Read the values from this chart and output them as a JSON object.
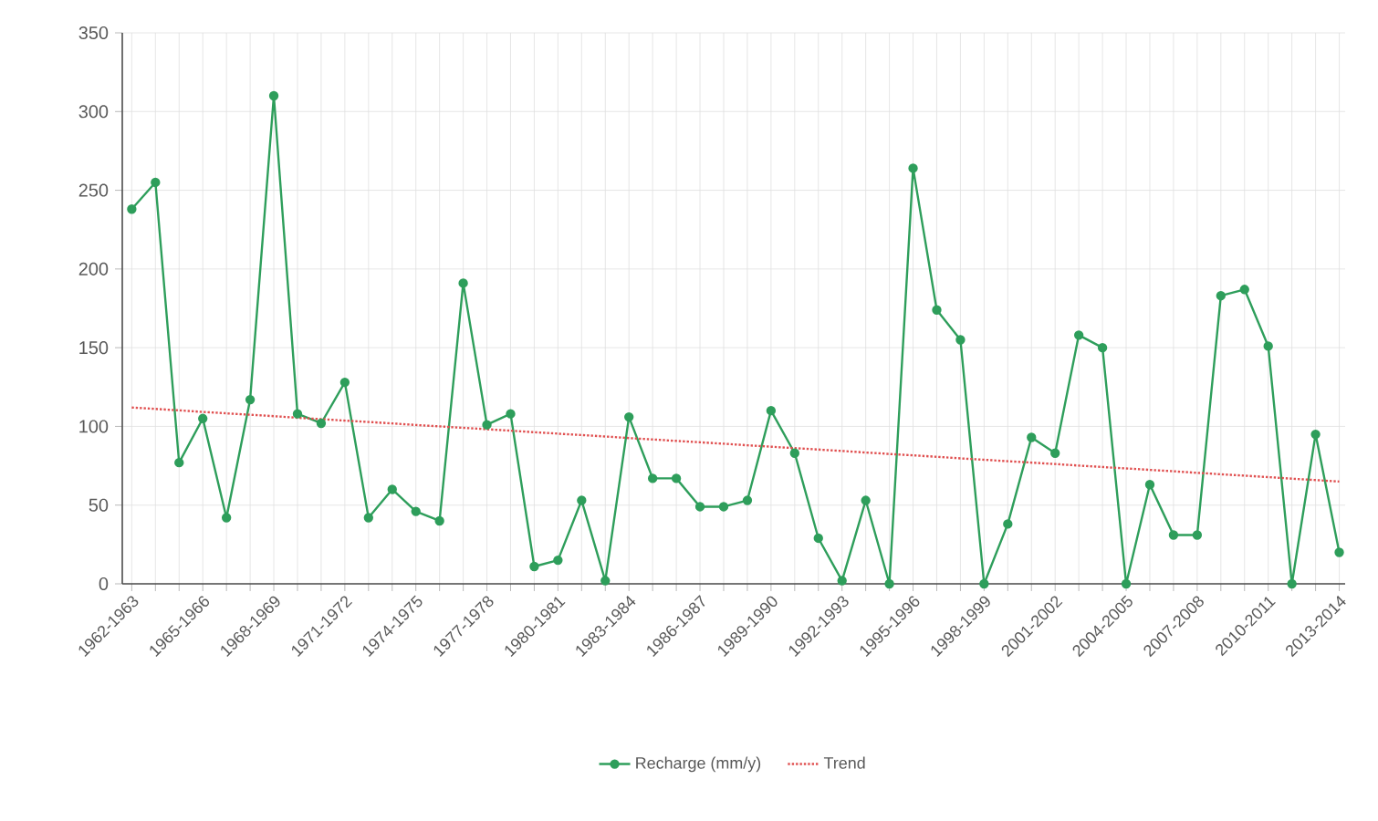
{
  "chart_data": {
    "type": "line",
    "categories": [
      "1962-1963",
      null,
      null,
      "1965-1966",
      null,
      null,
      "1968-1969",
      null,
      null,
      "1971-1972",
      null,
      null,
      "1974-1975",
      null,
      null,
      "1977-1978",
      null,
      null,
      "1980-1981",
      null,
      null,
      "1983-1984",
      null,
      null,
      "1986-1987",
      null,
      null,
      "1989-1990",
      null,
      null,
      "1992-1993",
      null,
      null,
      "1995-1996",
      null,
      null,
      "1998-1999",
      null,
      null,
      "2001-2002",
      null,
      null,
      "2004-2005",
      null,
      null,
      "2007-2008",
      null,
      null,
      "2010-2011",
      null,
      null,
      "2013-2014"
    ],
    "series": [
      {
        "name": "Recharge (mm/y)",
        "color": "#2e9e5b",
        "marker": "circle",
        "line_style": "solid",
        "values": [
          238,
          255,
          77,
          105,
          42,
          117,
          310,
          108,
          102,
          128,
          42,
          60,
          46,
          40,
          191,
          101,
          108,
          11,
          15,
          53,
          2,
          106,
          67,
          67,
          49,
          49,
          53,
          110,
          83,
          29,
          2,
          53,
          0,
          264,
          174,
          155,
          0,
          38,
          93,
          83,
          158,
          150,
          0,
          63,
          31,
          31,
          183,
          187,
          151,
          0,
          95,
          20
        ]
      },
      {
        "name": "Trend",
        "type": "line",
        "color": "#e05050",
        "marker": "none",
        "line_style": "dotted",
        "values": [
          112,
          111.1,
          110.2,
          109.2,
          108.3,
          107.4,
          106.5,
          105.5,
          104.6,
          103.7,
          102.8,
          101.9,
          100.9,
          100,
          99.1,
          98.2,
          97.3,
          96.3,
          95.4,
          94.5,
          93.6,
          92.6,
          91.7,
          90.8,
          89.9,
          89,
          88,
          87.1,
          86.2,
          85.3,
          84.4,
          83.4,
          82.5,
          81.6,
          80.7,
          79.7,
          78.8,
          77.9,
          77,
          76.1,
          75.1,
          74.2,
          73.3,
          72.4,
          71.5,
          70.5,
          69.6,
          68.7,
          67.8,
          66.8,
          65.9,
          65
        ]
      }
    ],
    "ylim": [
      0,
      350
    ],
    "yticks": [
      0,
      50,
      100,
      150,
      200,
      250,
      300,
      350
    ],
    "grid": true,
    "legend": "bottom"
  }
}
